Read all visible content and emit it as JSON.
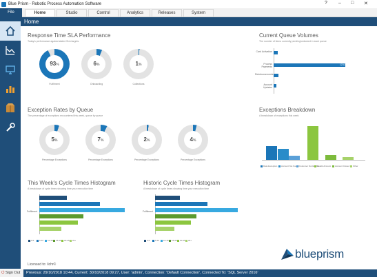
{
  "window": {
    "title": "Blue Prism - Robotic Process Automation Software",
    "help": "?",
    "min": "–",
    "max": "□",
    "close": "✕"
  },
  "menu": {
    "file": "File",
    "tabs": [
      "Home",
      "Studio",
      "Control",
      "Analytics",
      "Releases",
      "System"
    ]
  },
  "header": {
    "title": "Home"
  },
  "sla": {
    "title": "Response Time SLA Performance",
    "subtitle": "Today's performance against stated SLA targets",
    "donuts": [
      {
        "value": "93",
        "unit": "%",
        "fraction": 0.93,
        "label": "Fulfilment"
      },
      {
        "value": "6",
        "unit": "%",
        "fraction": 0.06,
        "label": "Onboarding"
      },
      {
        "value": "1",
        "unit": "%",
        "fraction": 0.01,
        "label": "Collections"
      }
    ]
  },
  "exceptions": {
    "title": "Exception Rates by Queue",
    "subtitle": "The percentage of exceptions encountered this week, queue by queue",
    "donuts": [
      {
        "value": "5",
        "unit": "%",
        "fraction": 0.05,
        "label": "Percentage Exceptions"
      },
      {
        "value": "7",
        "unit": "%",
        "fraction": 0.07,
        "label": "Percentage Exceptions"
      },
      {
        "value": "2",
        "unit": "%",
        "fraction": 0.02,
        "label": "Percentage Exceptions"
      },
      {
        "value": "4",
        "unit": "%",
        "fraction": 0.04,
        "label": "Percentage Exceptions"
      }
    ]
  },
  "queue_volumes": {
    "title": "Current Queue Volumes",
    "subtitle": "The number of items currently pending/unlocked in each queue",
    "bars": [
      {
        "label": "Card Activation",
        "value": 72
      },
      {
        "label": "Process Payments",
        "value": 1232
      },
      {
        "label": "Reimbursements",
        "value": 85
      },
      {
        "label": "Account Updates",
        "value": 50
      }
    ],
    "max": 1400,
    "value_labels": [
      "",
      "1232",
      "",
      ""
    ]
  },
  "breakdown": {
    "title": "Exceptions Breakdown",
    "subtitle": "A breakdown of exceptions this week",
    "bars": [
      {
        "value": 35,
        "color": "#1b76b8"
      },
      {
        "value": 28,
        "color": "#2a8cc9"
      },
      {
        "value": 10,
        "color": "#5aa0d8"
      },
      {
        "value": 88,
        "color": "#8cc63f"
      },
      {
        "value": 12,
        "color": "#7dbb3c"
      },
      {
        "value": 8,
        "color": "#a7d26a"
      }
    ],
    "value_labels": [
      "",
      "",
      "",
      "",
      "",
      ""
    ],
    "legend": [
      "Data Exception",
      "Account Not Found",
      "Customer Not Eligible",
      "Invalid Account",
      "Account Closed",
      "Other"
    ],
    "max": 100
  },
  "cycle_this_week": {
    "title": "This Week's Cycle Times Histogram",
    "subtitle": "A breakdown of cycle times showing time your execution time",
    "row_label": "Fulfilment",
    "bars": [
      {
        "value": 20,
        "color": "#1f4e79"
      },
      {
        "value": 44,
        "color": "#1b76b8"
      },
      {
        "value": 62,
        "color": "#38a9e0"
      },
      {
        "value": 32,
        "color": "#5b9a2e"
      },
      {
        "value": 28,
        "color": "#8cc63f"
      },
      {
        "value": 16,
        "color": "#a7d26a"
      }
    ],
    "max": 70,
    "legend": [
      "0-5",
      "5-10",
      "10-15",
      "15-20",
      "20-25",
      "25+"
    ]
  },
  "cycle_historic": {
    "title": "Historic Cycle Times Histogram",
    "subtitle": "A breakdown of cycle times showing time your execution time",
    "row_label": "Fulfilment",
    "bars": [
      {
        "value": 18,
        "color": "#1f4e79"
      },
      {
        "value": 38,
        "color": "#1b76b8"
      },
      {
        "value": 60,
        "color": "#38a9e0"
      },
      {
        "value": 30,
        "color": "#5b9a2e"
      },
      {
        "value": 26,
        "color": "#8cc63f"
      },
      {
        "value": 14,
        "color": "#a7d26a"
      }
    ],
    "max": 70,
    "legend": [
      "0-5",
      "5-10",
      "10-15",
      "15-20",
      "20-25",
      "25+"
    ]
  },
  "licensed": "Licensed to: lichr©",
  "logo_text": "blueprism",
  "status": {
    "signout": "Sign Out",
    "text": "Previous: 29/10/2018 10:44, Current: 30/10/2018 09:27, User: 'admin', Connection: 'Default Connection', Connected To: 'SQL Server 2016'"
  },
  "colors": {
    "navy": "#1f4e79",
    "blue": "#1b76b8",
    "green": "#8cc63f",
    "track": "#e3e3e3"
  }
}
